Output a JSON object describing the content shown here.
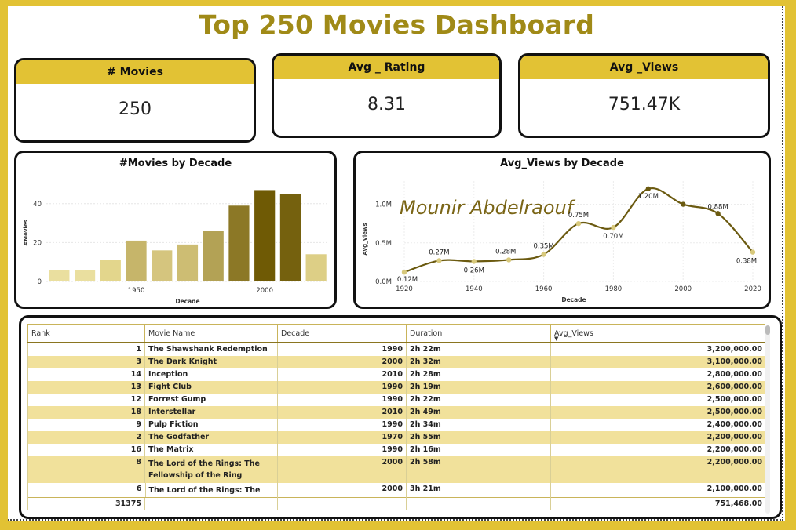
{
  "dashboard": {
    "title": "Top 250 Movies Dashboard"
  },
  "kpis": [
    {
      "label": "# Movies",
      "value": "250"
    },
    {
      "label": "Avg _ Rating",
      "value": "8.31"
    },
    {
      "label": "Avg _Views",
      "value": "751.47K"
    }
  ],
  "chart_data": [
    {
      "type": "bar",
      "title": "#Movies by Decade",
      "xlabel": "Decade",
      "ylabel": "#Movies",
      "categories": [
        "1920",
        "1930",
        "1940",
        "1950",
        "1960",
        "1970",
        "1980",
        "1990",
        "2000",
        "2010",
        "2020"
      ],
      "x_tick_labels": [
        "1950",
        "2000"
      ],
      "y_tick_labels": [
        "0",
        "20",
        "40"
      ],
      "values": [
        6,
        6,
        11,
        21,
        16,
        19,
        26,
        39,
        47,
        45,
        14
      ],
      "colors": [
        "#eadf9f",
        "#eadf9f",
        "#e3d68c",
        "#c6b56a",
        "#d5c57e",
        "#cdbd73",
        "#b3a255",
        "#8c7826",
        "#6f5a05",
        "#75610e",
        "#ddcf86"
      ],
      "ylim": [
        0,
        50
      ],
      "grid": true
    },
    {
      "type": "line",
      "title": "Avg_Views by Decade",
      "xlabel": "Decade",
      "ylabel": "Avg_Views",
      "x": [
        1920,
        1930,
        1940,
        1950,
        1960,
        1970,
        1980,
        1990,
        2000,
        2010,
        2020
      ],
      "y": [
        0.12,
        0.27,
        0.26,
        0.28,
        0.35,
        0.75,
        0.7,
        1.2,
        1.0,
        0.88,
        0.38
      ],
      "point_labels": [
        "0.12M",
        "0.27M",
        "0.26M",
        "0.28M",
        "0.35M",
        "0.75M",
        "0.70M",
        "1.20M",
        "",
        "0.88M",
        "0.38M"
      ],
      "x_tick_labels": [
        "1920",
        "1940",
        "1960",
        "1980",
        "2000",
        "2020"
      ],
      "y_tick_labels": [
        "0.0M",
        "0.5M",
        "1.0M"
      ],
      "xlim": [
        1920,
        2020
      ],
      "ylim": [
        0,
        1.3
      ],
      "line_color": "#6b5a10",
      "grid": true,
      "watermark": "Mounir Abdelraouf"
    }
  ],
  "table": {
    "columns": [
      "Rank",
      "Movie Name",
      "Decade",
      "Duration",
      "Avg_Views"
    ],
    "rows": [
      {
        "rank": "1",
        "name": "The Shawshank Redemption",
        "decade": "1990",
        "duration": "2h 22m",
        "views": "3,200,000.00"
      },
      {
        "rank": "3",
        "name": "The Dark Knight",
        "decade": "2000",
        "duration": "2h 32m",
        "views": "3,100,000.00"
      },
      {
        "rank": "14",
        "name": "Inception",
        "decade": "2010",
        "duration": "2h 28m",
        "views": "2,800,000.00"
      },
      {
        "rank": "13",
        "name": "Fight Club",
        "decade": "1990",
        "duration": "2h 19m",
        "views": "2,600,000.00"
      },
      {
        "rank": "12",
        "name": "Forrest Gump",
        "decade": "1990",
        "duration": "2h 22m",
        "views": "2,500,000.00"
      },
      {
        "rank": "18",
        "name": "Interstellar",
        "decade": "2010",
        "duration": "2h 49m",
        "views": "2,500,000.00"
      },
      {
        "rank": "9",
        "name": "Pulp Fiction",
        "decade": "1990",
        "duration": "2h 34m",
        "views": "2,400,000.00"
      },
      {
        "rank": "2",
        "name": "The Godfather",
        "decade": "1970",
        "duration": "2h 55m",
        "views": "2,200,000.00"
      },
      {
        "rank": "16",
        "name": "The Matrix",
        "decade": "1990",
        "duration": "2h 16m",
        "views": "2,200,000.00"
      },
      {
        "rank": "8",
        "name": "The Lord of the Rings: The Fellowship of the Ring",
        "decade": "2000",
        "duration": "2h 58m",
        "views": "2,200,000.00"
      },
      {
        "rank": "6",
        "name": "The Lord of the Rings: The Return of the King",
        "decade": "2000",
        "duration": "3h 21m",
        "views": "2,100,000.00"
      }
    ],
    "total": {
      "rank": "31375",
      "views": "751,468.00"
    },
    "sort_icon": "sort-descending-icon"
  }
}
